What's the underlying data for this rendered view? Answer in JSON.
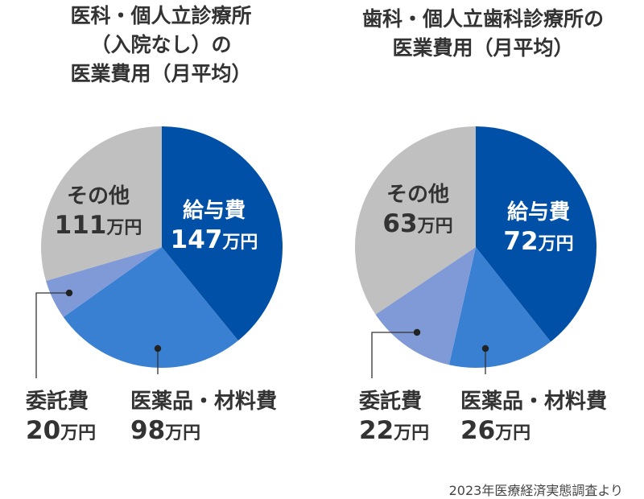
{
  "footnote": "2023年医療経済実態調査より",
  "colors": {
    "salary": "#0050a8",
    "drugs": "#3a80d2",
    "outsourcing": "#7f9ad6",
    "other": "#c0c0c0",
    "text_dark": "#333333",
    "text_white": "#ffffff"
  },
  "chart_data": [
    {
      "type": "pie",
      "title_lines": [
        "医科・個人立診療所",
        "（入院なし）の",
        "医業費用（月平均）"
      ],
      "unit": "万円",
      "slices": [
        {
          "name": "給与費",
          "value": 147,
          "color": "#0050a8"
        },
        {
          "name": "医薬品・材料費",
          "value": 98,
          "color": "#3a80d2"
        },
        {
          "name": "委託費",
          "value": 20,
          "color": "#7f9ad6"
        },
        {
          "name": "その他",
          "value": 111,
          "color": "#c0c0c0"
        }
      ]
    },
    {
      "type": "pie",
      "title_lines": [
        "歯科・個人立歯科診療所の",
        "医業費用（月平均）"
      ],
      "unit": "万円",
      "slices": [
        {
          "name": "給与費",
          "value": 72,
          "color": "#0050a8"
        },
        {
          "name": "医薬品・材料費",
          "value": 26,
          "color": "#3a80d2"
        },
        {
          "name": "委託費",
          "value": 22,
          "color": "#7f9ad6"
        },
        {
          "name": "その他",
          "value": 63,
          "color": "#c0c0c0"
        }
      ]
    }
  ]
}
